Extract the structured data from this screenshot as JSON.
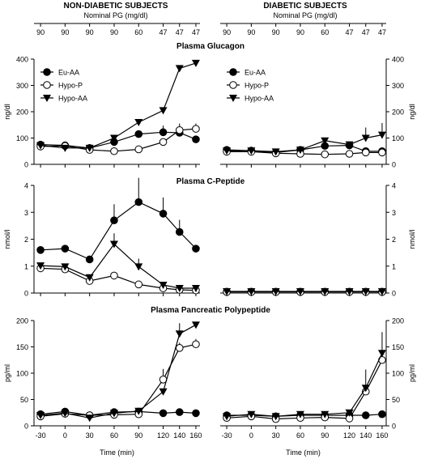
{
  "headers": {
    "left": "NON-DIABETIC SUBJECTS",
    "right": "DIABETIC SUBJECTS",
    "nominal_label": "Nominal PG (mg/dl)",
    "nominal_values": [
      "90",
      "90",
      "90",
      "90",
      "60",
      "47",
      "47",
      "47"
    ]
  },
  "chart_data": [
    {
      "type": "line",
      "panel": "glucagon-non-diabetic",
      "title": "Plasma Glucagon",
      "xlabel": "",
      "ylabel": "ng/dl",
      "x": [
        -30,
        0,
        30,
        60,
        90,
        120,
        140,
        160
      ],
      "ylim": [
        0,
        400
      ],
      "yticks": [
        "0",
        "100",
        "200",
        "300",
        "400"
      ],
      "legend_placement": "top-left",
      "series": [
        {
          "name": "Eu-AA",
          "marker": "filled-circle",
          "values": [
            75,
            72,
            62,
            85,
            115,
            122,
            120,
            95
          ],
          "err": [
            0,
            0,
            0,
            0,
            0,
            25,
            15,
            0
          ]
        },
        {
          "name": "Hypo-P",
          "marker": "open-circle",
          "values": [
            68,
            70,
            55,
            50,
            57,
            85,
            130,
            135
          ],
          "err": [
            0,
            0,
            0,
            0,
            0,
            0,
            25,
            20
          ]
        },
        {
          "name": "Hypo-AA",
          "marker": "filled-triangle",
          "values": [
            72,
            62,
            62,
            100,
            160,
            205,
            365,
            385
          ],
          "err": [
            0,
            0,
            0,
            0,
            0,
            0,
            0,
            0
          ]
        }
      ]
    },
    {
      "type": "line",
      "panel": "glucagon-diabetic",
      "title": "",
      "xlabel": "",
      "ylabel": "ng/dl",
      "x": [
        -30,
        0,
        30,
        60,
        90,
        120,
        140,
        160
      ],
      "ylim": [
        0,
        400
      ],
      "yticks": [
        "0",
        "100",
        "200",
        "300",
        "400"
      ],
      "legend_placement": "top-left",
      "series": [
        {
          "name": "Eu-AA",
          "marker": "filled-circle",
          "values": [
            55,
            52,
            45,
            55,
            70,
            72,
            50,
            50
          ],
          "err": [
            0,
            0,
            0,
            0,
            0,
            0,
            0,
            0
          ]
        },
        {
          "name": "Hypo-P",
          "marker": "open-circle",
          "values": [
            48,
            48,
            42,
            40,
            38,
            40,
            45,
            45
          ],
          "err": [
            0,
            0,
            0,
            0,
            0,
            0,
            0,
            0
          ]
        },
        {
          "name": "Hypo-AA",
          "marker": "filled-triangle",
          "values": [
            52,
            52,
            48,
            55,
            90,
            75,
            100,
            112
          ],
          "err": [
            0,
            0,
            0,
            0,
            0,
            0,
            40,
            45
          ]
        }
      ]
    },
    {
      "type": "line",
      "panel": "c-peptide-non-diabetic",
      "title": "Plasma C-Peptide",
      "xlabel": "",
      "ylabel": "nmol/l",
      "x": [
        -30,
        0,
        30,
        60,
        90,
        120,
        140,
        160
      ],
      "ylim": [
        0,
        4
      ],
      "yticks": [
        "0",
        "1",
        "2",
        "3",
        "4"
      ],
      "series": [
        {
          "name": "Eu-AA",
          "marker": "filled-circle",
          "values": [
            1.6,
            1.65,
            1.25,
            2.7,
            3.38,
            2.95,
            2.27,
            1.65
          ],
          "err": [
            0,
            0,
            0,
            0.6,
            0.9,
            0.6,
            0.45,
            0
          ]
        },
        {
          "name": "Hypo-P",
          "marker": "open-circle",
          "values": [
            0.92,
            0.88,
            0.45,
            0.65,
            0.32,
            0.18,
            0.12,
            0.1
          ],
          "err": [
            0,
            0,
            0,
            0,
            0,
            0,
            0,
            0
          ]
        },
        {
          "name": "Hypo-AA",
          "marker": "filled-triangle",
          "values": [
            1.02,
            0.98,
            0.58,
            1.82,
            0.98,
            0.3,
            0.18,
            0.18
          ],
          "err": [
            0,
            0,
            0,
            0.4,
            0.3,
            0,
            0,
            0
          ]
        }
      ]
    },
    {
      "type": "line",
      "panel": "c-peptide-diabetic",
      "title": "",
      "xlabel": "",
      "ylabel": "nmol/l",
      "x": [
        -30,
        0,
        30,
        60,
        90,
        120,
        140,
        160
      ],
      "ylim": [
        0,
        4
      ],
      "yticks": [
        "0",
        "1",
        "2",
        "3",
        "4"
      ],
      "series": [
        {
          "name": "Eu-AA",
          "marker": "filled-circle",
          "values": [
            0.05,
            0.05,
            0.05,
            0.05,
            0.05,
            0.05,
            0.05,
            0.05
          ],
          "err": [
            0,
            0,
            0,
            0,
            0,
            0,
            0,
            0
          ]
        },
        {
          "name": "Hypo-P",
          "marker": "open-circle",
          "values": [
            0.04,
            0.04,
            0.04,
            0.04,
            0.04,
            0.04,
            0.04,
            0.04
          ],
          "err": [
            0,
            0,
            0,
            0,
            0,
            0,
            0,
            0
          ]
        },
        {
          "name": "Hypo-AA",
          "marker": "filled-triangle",
          "values": [
            0.06,
            0.06,
            0.06,
            0.06,
            0.06,
            0.06,
            0.06,
            0.06
          ],
          "err": [
            0,
            0,
            0,
            0,
            0,
            0,
            0,
            0
          ]
        }
      ]
    },
    {
      "type": "line",
      "panel": "pp-non-diabetic",
      "title": "Plasma Pancreatic Polypeptide",
      "xlabel": "Time (min)",
      "ylabel": "pg/ml",
      "x": [
        -30,
        0,
        30,
        60,
        90,
        120,
        140,
        160
      ],
      "ylim": [
        0,
        200
      ],
      "yticks": [
        "0",
        "50",
        "100",
        "150",
        "200"
      ],
      "xticks": [
        "-30",
        "0",
        "30",
        "60",
        "90",
        "120",
        "140",
        "160"
      ],
      "series": [
        {
          "name": "Eu-AA",
          "marker": "filled-circle",
          "values": [
            22,
            27,
            20,
            26,
            27,
            24,
            26,
            24
          ],
          "err": [
            0,
            0,
            0,
            0,
            0,
            0,
            0,
            0
          ]
        },
        {
          "name": "Hypo-P",
          "marker": "open-circle",
          "values": [
            18,
            23,
            20,
            21,
            22,
            88,
            148,
            155
          ],
          "err": [
            0,
            0,
            0,
            0,
            0,
            20,
            10,
            10
          ]
        },
        {
          "name": "Hypo-AA",
          "marker": "filled-triangle",
          "values": [
            20,
            24,
            15,
            24,
            28,
            65,
            175,
            192
          ],
          "err": [
            0,
            0,
            0,
            0,
            0,
            0,
            20,
            0
          ]
        }
      ]
    },
    {
      "type": "line",
      "panel": "pp-diabetic",
      "title": "",
      "xlabel": "Time (min)",
      "ylabel": "pg/ml",
      "x": [
        -30,
        0,
        30,
        60,
        90,
        120,
        140,
        160
      ],
      "ylim": [
        0,
        200
      ],
      "yticks": [
        "0",
        "50",
        "100",
        "150",
        "200"
      ],
      "xticks": [
        "-30",
        "0",
        "30",
        "60",
        "90",
        "120",
        "140",
        "160"
      ],
      "series": [
        {
          "name": "Eu-AA",
          "marker": "filled-circle",
          "values": [
            20,
            20,
            18,
            20,
            20,
            20,
            20,
            22
          ],
          "err": [
            0,
            0,
            0,
            0,
            0,
            0,
            0,
            0
          ]
        },
        {
          "name": "Hypo-P",
          "marker": "open-circle",
          "values": [
            15,
            18,
            13,
            15,
            16,
            14,
            65,
            125
          ],
          "err": [
            0,
            0,
            0,
            0,
            0,
            0,
            0,
            0
          ]
        },
        {
          "name": "Hypo-AA",
          "marker": "filled-triangle",
          "values": [
            18,
            22,
            18,
            22,
            22,
            25,
            72,
            138
          ],
          "err": [
            0,
            0,
            0,
            0,
            0,
            0,
            35,
            40
          ]
        }
      ]
    }
  ]
}
